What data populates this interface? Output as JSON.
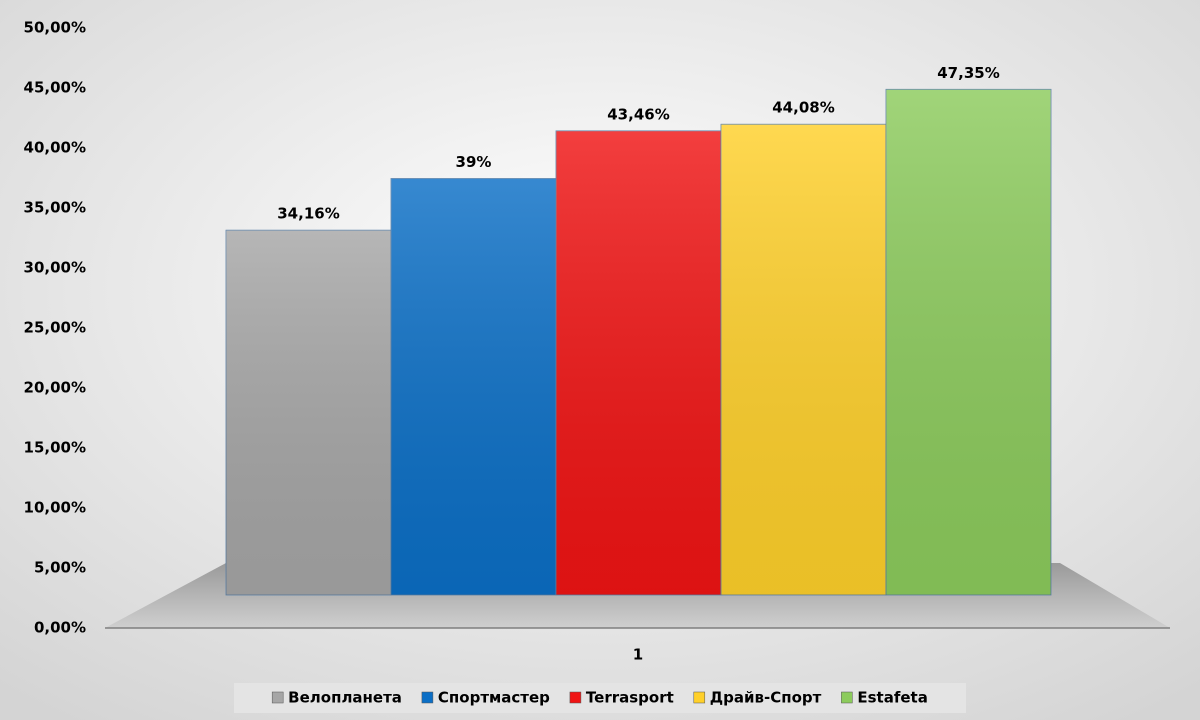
{
  "chart_data": {
    "type": "bar",
    "categories": [
      "1"
    ],
    "series": [
      {
        "name": "Велопланета",
        "color": "#a6a6a6",
        "values": [
          34.16
        ],
        "value_labels": [
          "34,16%"
        ]
      },
      {
        "name": "Спортмастер",
        "color": "#0b6fc6",
        "values": [
          39
        ],
        "value_labels": [
          "39%"
        ]
      },
      {
        "name": "Terrasport",
        "color": "#f01414",
        "values": [
          43.46
        ],
        "value_labels": [
          "43,46%"
        ]
      },
      {
        "name": "Драйв-Спорт",
        "color": "#ffd02a",
        "values": [
          44.08
        ],
        "value_labels": [
          "44,08%"
        ]
      },
      {
        "name": "Estafeta",
        "color": "#8ccb5c",
        "values": [
          47.35
        ],
        "value_labels": [
          "47,35%"
        ]
      }
    ],
    "ylim": [
      0,
      50
    ],
    "yticks": [
      {
        "value": 0,
        "label": "0,00%"
      },
      {
        "value": 5,
        "label": "5,00%"
      },
      {
        "value": 10,
        "label": "10,00%"
      },
      {
        "value": 15,
        "label": "15,00%"
      },
      {
        "value": 20,
        "label": "20,00%"
      },
      {
        "value": 25,
        "label": "25,00%"
      },
      {
        "value": 30,
        "label": "30,00%"
      },
      {
        "value": 35,
        "label": "35,00%"
      },
      {
        "value": 40,
        "label": "40,00%"
      },
      {
        "value": 45,
        "label": "45,00%"
      },
      {
        "value": 50,
        "label": "50,00%"
      }
    ],
    "legend": "bottom"
  }
}
